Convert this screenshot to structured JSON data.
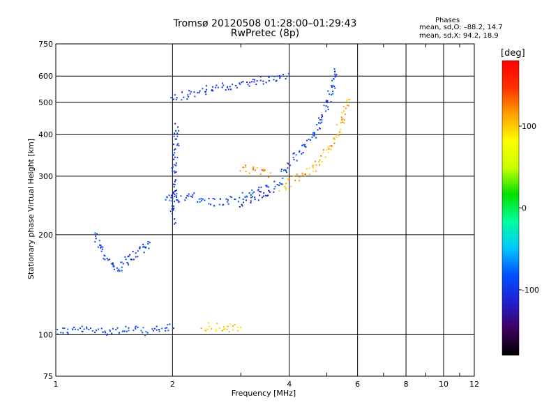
{
  "header": {
    "title_line1": "Tromsø 20120508 01:28:00–01:29:43",
    "title_line2": "RwPretec (8p)"
  },
  "phases_box": {
    "title": "Phases",
    "o_line": "mean, sd,O: –88.2, 14.7",
    "x_line": "mean, sd,X:  94.2, 18.9"
  },
  "colorbar": {
    "title": "[deg]",
    "ticks": [
      100,
      0,
      -100
    ],
    "range": [
      -180,
      180
    ],
    "stops": [
      "#000000",
      "#400060",
      "#2020d0",
      "#0050ff",
      "#00c8ff",
      "#00ffa0",
      "#00e000",
      "#c8ff00",
      "#ffff00",
      "#ffa000",
      "#ff3000",
      "#ff0000"
    ]
  },
  "chart_data": {
    "type": "scatter",
    "title": "Tromsø 20120508 01:28:00–01:29:43",
    "subtitle": "RwPretec (8p)",
    "xlabel": "Frequency [MHz]",
    "ylabel": "Stationary phase Virtual Height [km]",
    "xscale": "log",
    "yscale": "log",
    "xlim": [
      1,
      12
    ],
    "ylim": [
      75,
      750
    ],
    "xticks": [
      1,
      2,
      4,
      6,
      8,
      10,
      12
    ],
    "yticks": [
      75,
      100,
      200,
      300,
      400,
      500,
      600,
      750
    ],
    "color_by": "phase_deg",
    "grid": true,
    "traces": [
      {
        "mode": "O",
        "phase": -90,
        "x": [
          1.0,
          1.15,
          1.3,
          1.5,
          1.7,
          1.9,
          2.0
        ],
        "y": [
          103,
          104,
          103,
          104,
          103,
          104,
          108
        ]
      },
      {
        "mode": "O",
        "phase": -95,
        "x": [
          1.25,
          1.3,
          1.35,
          1.4,
          1.45,
          1.5,
          1.55,
          1.6,
          1.65,
          1.7,
          1.75
        ],
        "y": [
          200,
          185,
          170,
          160,
          158,
          165,
          170,
          175,
          180,
          185,
          190
        ]
      },
      {
        "mode": "O",
        "phase": -90,
        "x": [
          1.9,
          2.0,
          2.05,
          2.2,
          2.4,
          2.6,
          2.8,
          3.0,
          3.3,
          3.6,
          3.9
        ],
        "y": [
          260,
          265,
          258,
          262,
          255,
          250,
          255,
          262,
          272,
          280,
          290
        ]
      },
      {
        "mode": "O",
        "phase": -100,
        "x": [
          2.0,
          2.02,
          2.05
        ],
        "y": [
          220,
          320,
          430
        ]
      },
      {
        "mode": "O",
        "phase": -100,
        "x": [
          2.0,
          2.1,
          2.3,
          2.6,
          3.0,
          3.5,
          4.0
        ],
        "y": [
          520,
          525,
          540,
          555,
          570,
          590,
          610
        ]
      },
      {
        "mode": "O",
        "phase": -95,
        "x": [
          3.8,
          4.0,
          4.3,
          4.6,
          4.9,
          5.1,
          5.3
        ],
        "y": [
          310,
          330,
          360,
          400,
          460,
          540,
          640
        ]
      },
      {
        "mode": "O",
        "phase": -120,
        "x": [
          3.0,
          3.2,
          3.4,
          3.6
        ],
        "y": [
          250,
          258,
          265,
          272
        ]
      },
      {
        "mode": "X",
        "phase": 100,
        "x": [
          2.4,
          2.6,
          2.8,
          3.0
        ],
        "y": [
          106,
          106,
          105,
          106
        ]
      },
      {
        "mode": "X",
        "phase": 120,
        "x": [
          3.0,
          3.2,
          3.4,
          3.6
        ],
        "y": [
          318,
          315,
          310,
          305
        ]
      },
      {
        "mode": "X",
        "phase": 110,
        "x": [
          3.8,
          4.0,
          4.3,
          4.6,
          4.9,
          5.2,
          5.5,
          5.7
        ],
        "y": [
          275,
          290,
          305,
          320,
          345,
          390,
          450,
          520
        ]
      }
    ]
  }
}
